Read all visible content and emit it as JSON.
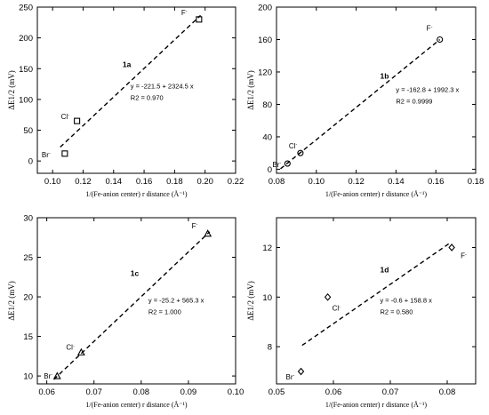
{
  "chart_data": [
    {
      "type": "scatter",
      "panel_label": "1a",
      "marker": "square",
      "xlabel": "1/(Fe-anion center) r distance (Å⁻¹)",
      "ylabel": "ΔE1/2 (mV)",
      "xlim": [
        0.09,
        0.22
      ],
      "ylim": [
        -20,
        250
      ],
      "xticks": [
        "0.10",
        "0.12",
        "0.14",
        "0.16",
        "0.18",
        "0.20",
        "0.22"
      ],
      "yticks": [
        "0",
        "50",
        "100",
        "150",
        "200",
        "250"
      ],
      "fit": {
        "equation": "y = -221.5 + 2324.5 x",
        "r2": "R2 = 0.970",
        "x_range": [
          0.105,
          0.197
        ]
      },
      "points": [
        {
          "ion": "Br",
          "x": 0.108,
          "y": 12
        },
        {
          "ion": "Cl",
          "x": 0.116,
          "y": 65
        },
        {
          "ion": "F",
          "x": 0.196,
          "y": 230
        }
      ]
    },
    {
      "type": "scatter",
      "panel_label": "1b",
      "marker": "circle",
      "xlabel": "1/(Fe-anion center) r distance (Å⁻¹)",
      "ylabel": "ΔE1/2 (mV)",
      "xlim": [
        0.08,
        0.18
      ],
      "ylim": [
        -5,
        200
      ],
      "xticks": [
        "0.08",
        "0.10",
        "0.12",
        "0.14",
        "0.16",
        "0.18"
      ],
      "yticks": [
        "0",
        "40",
        "80",
        "120",
        "160",
        "200"
      ],
      "fit": {
        "equation": "y = -162.8 + 1992.3 x",
        "r2": "R2 = 0.9999",
        "x_range": [
          0.082,
          0.162
        ]
      },
      "points": [
        {
          "ion": "Br",
          "x": 0.0855,
          "y": 7
        },
        {
          "ion": "Cl",
          "x": 0.092,
          "y": 20
        },
        {
          "ion": "F",
          "x": 0.162,
          "y": 160
        }
      ]
    },
    {
      "type": "scatter",
      "panel_label": "1c",
      "marker": "triangle",
      "xlabel": "1/(Fe-anion center) r distance (Å⁻¹)",
      "ylabel": "ΔE1/2 (mV)",
      "xlim": [
        0.058,
        0.1
      ],
      "ylim": [
        9,
        30
      ],
      "xticks": [
        "0.06",
        "0.07",
        "0.08",
        "0.09",
        "0.10"
      ],
      "yticks": [
        "10",
        "15",
        "20",
        "25",
        "30"
      ],
      "fit": {
        "equation": "y = -25.2 + 565.3 x",
        "r2": "R2 = 1.000",
        "x_range": [
          0.0615,
          0.0945
        ]
      },
      "points": [
        {
          "ion": "Br",
          "x": 0.0622,
          "y": 10
        },
        {
          "ion": "Cl",
          "x": 0.0673,
          "y": 13
        },
        {
          "ion": "F",
          "x": 0.0941,
          "y": 28
        }
      ]
    },
    {
      "type": "scatter",
      "panel_label": "1d",
      "marker": "diamond",
      "xlabel": "1/(Fe-anion center) r distance (Å⁻¹)",
      "ylabel": "ΔE1/2 (mV)",
      "xlim": [
        0.05,
        0.085
      ],
      "ylim": [
        6.5,
        13.2
      ],
      "xticks": [
        "0.05",
        "0.06",
        "0.07",
        "0.08"
      ],
      "yticks": [
        "8",
        "10",
        "12"
      ],
      "fit": {
        "equation": "y = -0.6 + 158.8 x",
        "r2": "R2 = 0.580",
        "x_range": [
          0.0545,
          0.0805
        ]
      },
      "points": [
        {
          "ion": "Br",
          "x": 0.0543,
          "y": 7
        },
        {
          "ion": "Cl",
          "x": 0.059,
          "y": 10
        },
        {
          "ion": "F",
          "x": 0.0808,
          "y": 12
        }
      ]
    }
  ]
}
